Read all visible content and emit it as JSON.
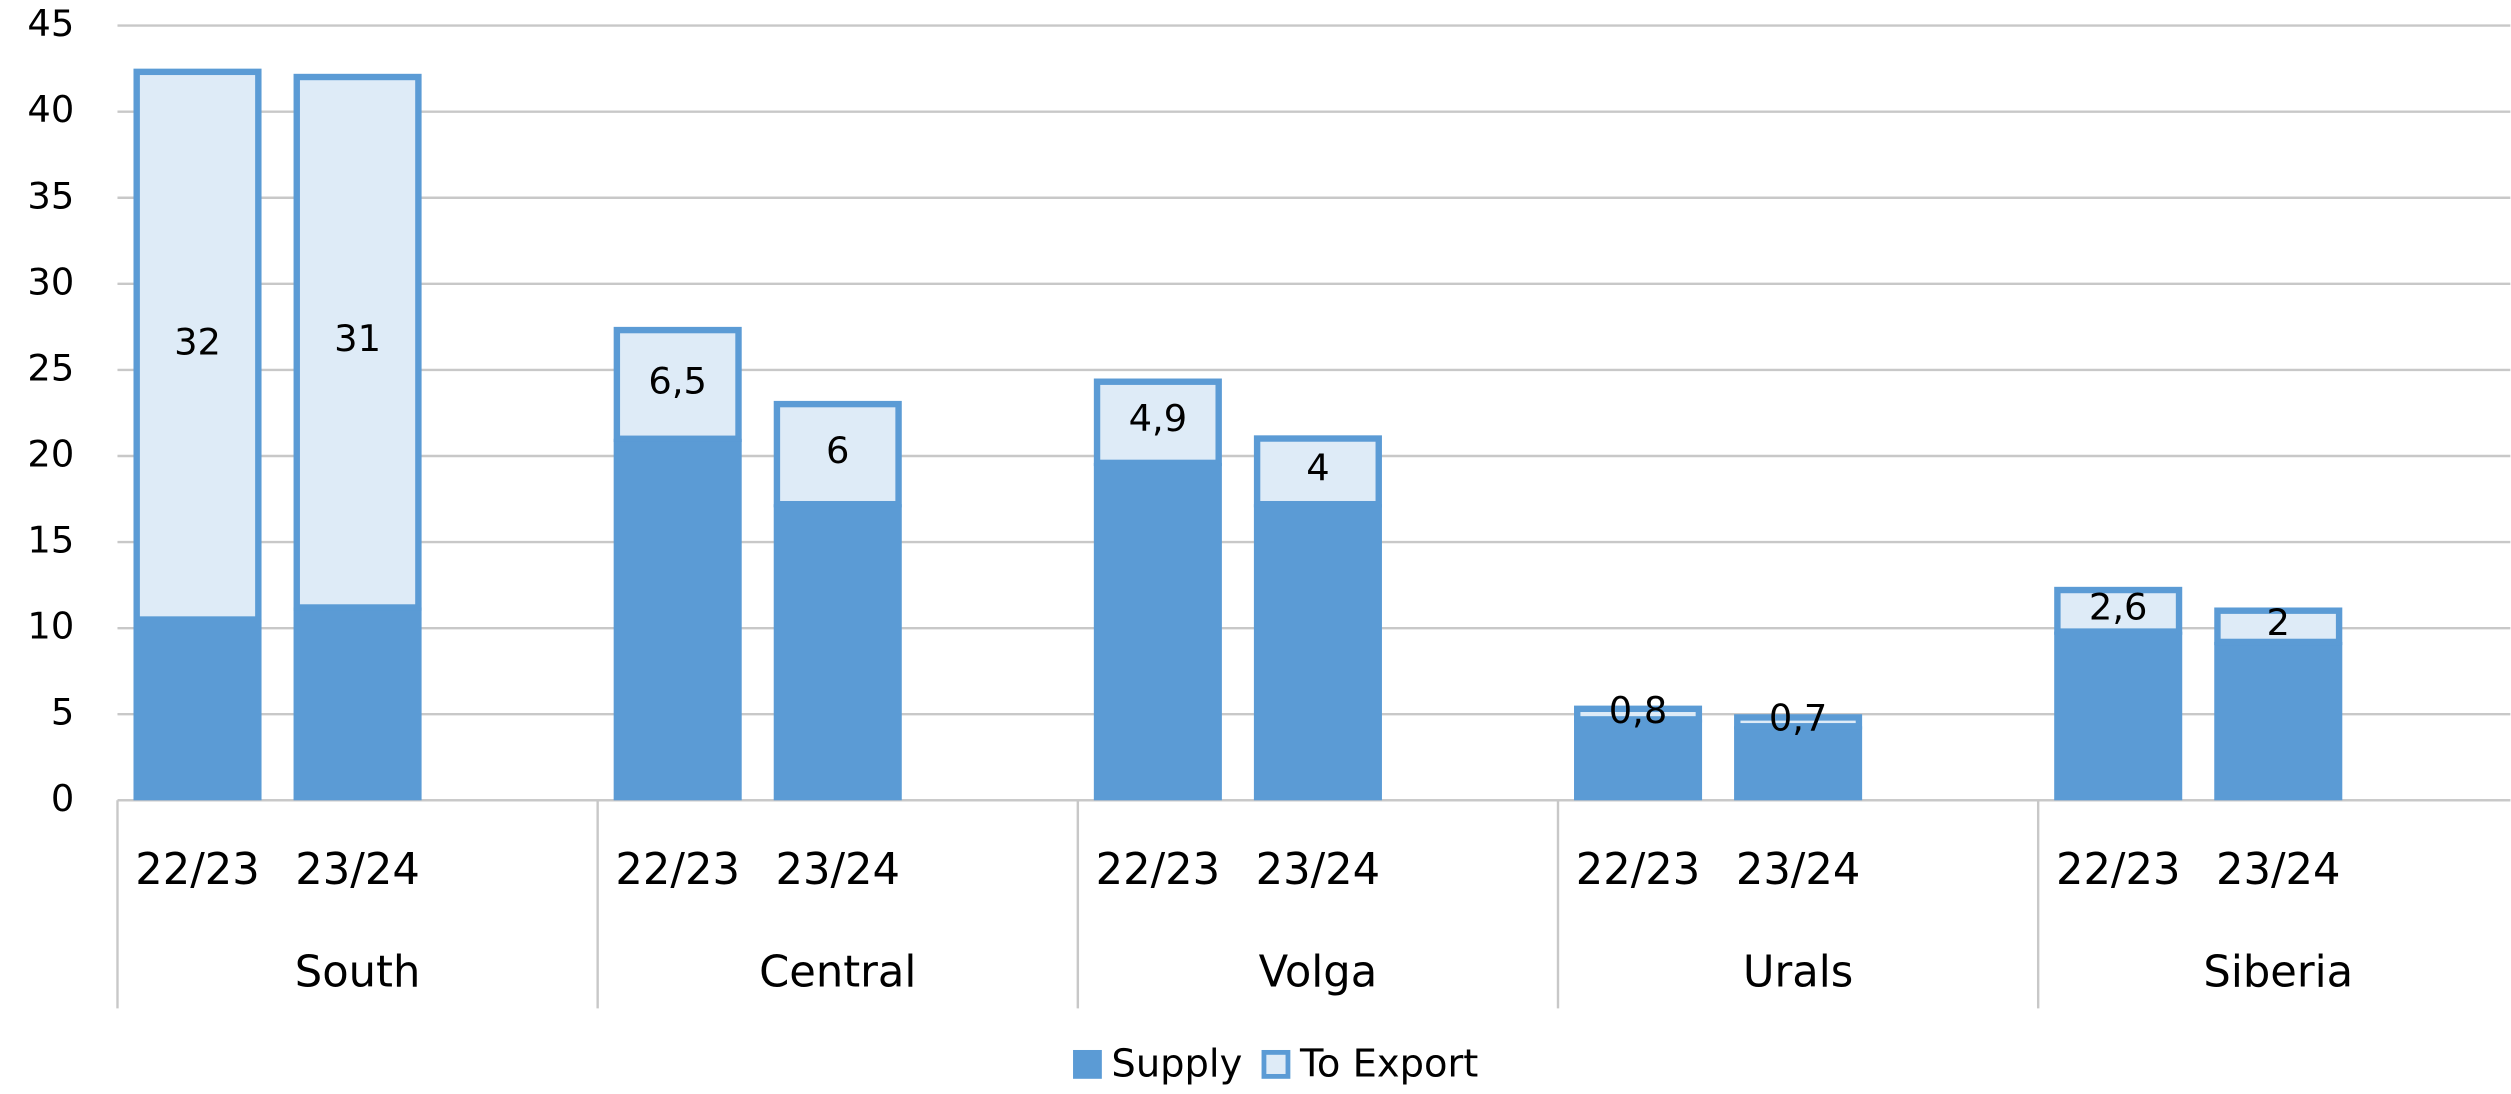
{
  "chart_data": {
    "type": "stacked_bar",
    "categories": [
      "22/23",
      "23/24",
      "22/23",
      "23/24",
      "22/23",
      "23/24",
      "22/23",
      "23/24",
      "22/23",
      "23/24"
    ],
    "groups": [
      "South",
      "Central",
      "Volga",
      "Urals",
      "Siberia"
    ],
    "series": [
      {
        "name": "Supply",
        "color": "#5b9bd5",
        "values": [
          10.5,
          11.2,
          21,
          17.2,
          19.6,
          17.2,
          4.7,
          4.3,
          9.8,
          9.2
        ]
      },
      {
        "name": "To Export",
        "color": "#deebf7",
        "values": [
          32,
          31,
          6.5,
          6,
          4.9,
          4,
          0.8,
          0.7,
          2.6,
          2
        ],
        "value_labels": [
          "32",
          "31",
          "6,5",
          "6",
          "4,9",
          "4",
          "0,8",
          "0,7",
          "2,6",
          "2"
        ]
      }
    ],
    "ylim": [
      0,
      45
    ],
    "yticks": [
      0,
      5,
      10,
      15,
      20,
      25,
      30,
      35,
      40,
      45
    ],
    "grid": true
  }
}
